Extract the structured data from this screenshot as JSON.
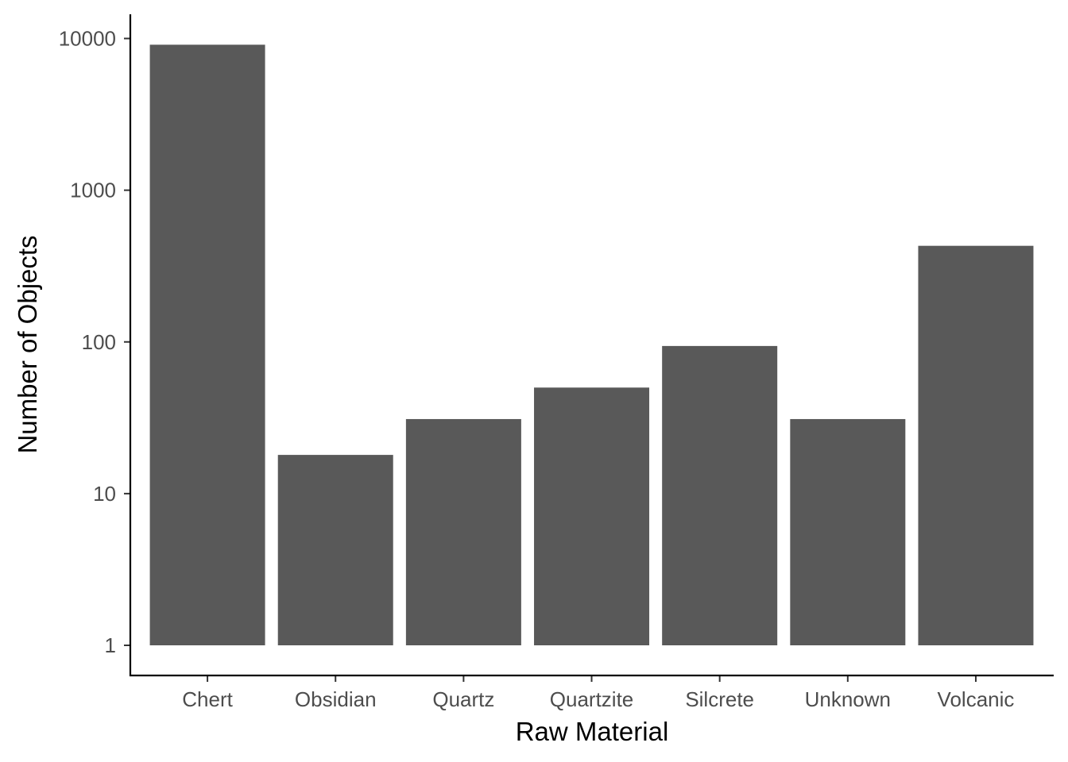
{
  "chart_data": {
    "type": "bar",
    "title": "",
    "xlabel": "Raw Material",
    "ylabel": "Number of Objects",
    "y_scale": "log10",
    "ylim": [
      1,
      10000
    ],
    "y_ticks": [
      {
        "value": 1,
        "label": "1"
      },
      {
        "value": 10,
        "label": "10"
      },
      {
        "value": 100,
        "label": "100"
      },
      {
        "value": 1000,
        "label": "1000"
      },
      {
        "value": 10000,
        "label": "10000"
      }
    ],
    "categories": [
      "Chert",
      "Obsidian",
      "Quartz",
      "Quartzite",
      "Silcrete",
      "Unknown",
      "Volcanic"
    ],
    "values": [
      9100,
      18,
      31,
      50,
      94,
      31,
      430
    ],
    "bar_color": "#595959",
    "grid": false,
    "legend": "none"
  }
}
